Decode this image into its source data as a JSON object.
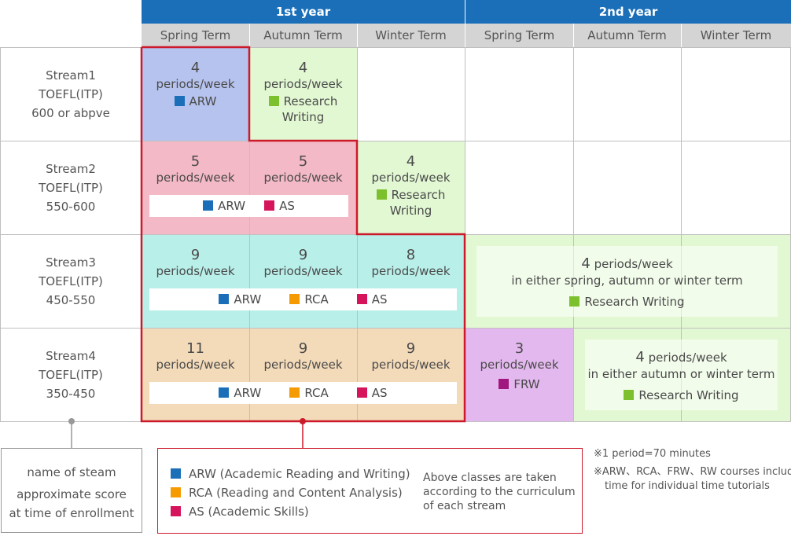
{
  "colors": {
    "arw": "#1a6fb8",
    "rca": "#f59a00",
    "as": "#d6145c",
    "rw": "#7cc02e",
    "frw": "#a0177f",
    "red_border": "#cc1a2a"
  },
  "header": {
    "year1": "1st year",
    "year2": "2nd year",
    "terms": [
      "Spring Term",
      "Autumn Term",
      "Winter Term",
      "Spring Term",
      "Autumn Term",
      "Winter Term"
    ]
  },
  "streams": [
    {
      "name": "Stream1",
      "toefl": "TOEFL(ITP)",
      "score": "600 or abpve"
    },
    {
      "name": "Stream2",
      "toefl": "TOEFL(ITP)",
      "score": "550-600"
    },
    {
      "name": "Stream3",
      "toefl": "TOEFL(ITP)",
      "score": "450-550"
    },
    {
      "name": "Stream4",
      "toefl": "TOEFL(ITP)",
      "score": "350-450"
    }
  ],
  "cells": {
    "s1_spring_num": "4",
    "s1_autumn_num": "4",
    "s2_spring_num": "5",
    "s2_autumn_num": "5",
    "s2_winter_num": "4",
    "s3_spring_num": "9",
    "s3_autumn_num": "9",
    "s3_winter_num": "8",
    "s4_spring_num": "11",
    "s4_autumn_num": "9",
    "s4_winter_num": "9",
    "s4_y2spring_num": "3",
    "periods_week": "periods/week"
  },
  "courses": {
    "arw": "ARW",
    "rca": "RCA",
    "as": "AS",
    "frw": "FRW",
    "rw_line1": "Research",
    "rw_line2": "Writing",
    "rw_full": "Research Writing"
  },
  "stream3_y2": {
    "num": "4",
    "pw": "periods/week",
    "line": "in either spring, autumn or winter term"
  },
  "stream4_y2": {
    "num": "4",
    "pw": "periods/week",
    "line": "in either autumn or winter term"
  },
  "legend_left": {
    "line1": "name of steam",
    "line2": "approximate score",
    "line3": "at time of enrollment"
  },
  "legend_courses": {
    "arw": "ARW (Academic Reading and Writing)",
    "rca": "RCA (Reading and Content Analysis)",
    "as": "AS (Academic Skills)",
    "note": "Above classes are taken according to the curriculum of each stream"
  },
  "notes": {
    "n1": "※1 period=70 minutes",
    "n2_line1": "※ARW、RCA、FRW、RW courses include",
    "n2_line2": "time for individual time tutorials"
  }
}
